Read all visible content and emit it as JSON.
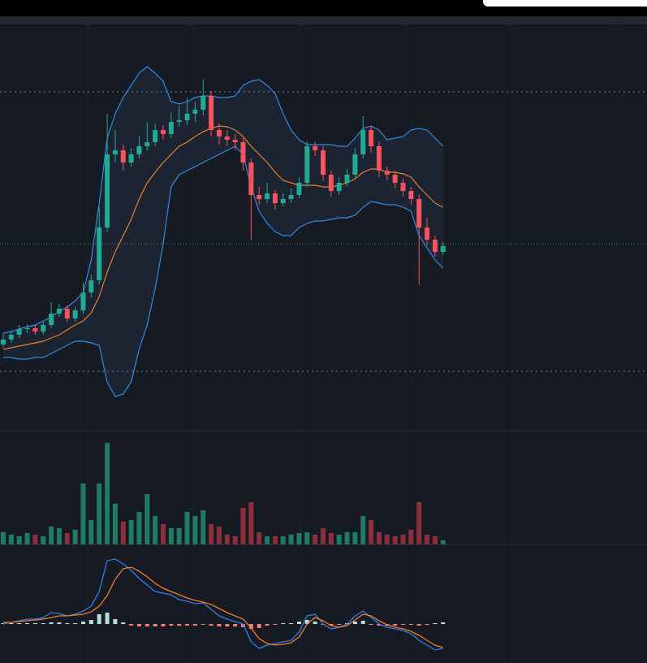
{
  "chart_data": {
    "type": "candlestick",
    "candles": [
      [
        106,
        120,
        102,
        112
      ],
      [
        112,
        122,
        108,
        118
      ],
      [
        118,
        130,
        114,
        125
      ],
      [
        125,
        131,
        120,
        126
      ],
      [
        126,
        130,
        118,
        122
      ],
      [
        122,
        134,
        118,
        130
      ],
      [
        130,
        158,
        126,
        144
      ],
      [
        144,
        156,
        140,
        150
      ],
      [
        150,
        154,
        134,
        138
      ],
      [
        138,
        152,
        134,
        148
      ],
      [
        148,
        182,
        144,
        170
      ],
      [
        170,
        192,
        164,
        185
      ],
      [
        185,
        275,
        180,
        250
      ],
      [
        250,
        390,
        245,
        340
      ],
      [
        340,
        370,
        330,
        345
      ],
      [
        345,
        352,
        320,
        330
      ],
      [
        330,
        348,
        325,
        340
      ],
      [
        340,
        362,
        335,
        350
      ],
      [
        350,
        380,
        345,
        355
      ],
      [
        355,
        378,
        350,
        370
      ],
      [
        370,
        376,
        358,
        365
      ],
      [
        365,
        392,
        360,
        380
      ],
      [
        380,
        400,
        374,
        382
      ],
      [
        382,
        410,
        376,
        390
      ],
      [
        390,
        405,
        380,
        395
      ],
      [
        395,
        432,
        388,
        412
      ],
      [
        412,
        418,
        362,
        370
      ],
      [
        370,
        378,
        352,
        362
      ],
      [
        362,
        370,
        350,
        358
      ],
      [
        358,
        365,
        345,
        355
      ],
      [
        355,
        360,
        320,
        330
      ],
      [
        330,
        335,
        235,
        290
      ],
      [
        290,
        300,
        278,
        285
      ],
      [
        285,
        305,
        280,
        292
      ],
      [
        292,
        296,
        272,
        280
      ],
      [
        280,
        292,
        276,
        285
      ],
      [
        285,
        298,
        280,
        290
      ],
      [
        290,
        312,
        286,
        305
      ],
      [
        305,
        356,
        300,
        350
      ],
      [
        350,
        356,
        338,
        345
      ],
      [
        345,
        350,
        308,
        315
      ],
      [
        315,
        320,
        288,
        295
      ],
      [
        295,
        312,
        290,
        305
      ],
      [
        305,
        322,
        300,
        315
      ],
      [
        315,
        348,
        310,
        340
      ],
      [
        340,
        387,
        335,
        370
      ],
      [
        370,
        375,
        342,
        350
      ],
      [
        350,
        356,
        312,
        320
      ],
      [
        320,
        325,
        308,
        315
      ],
      [
        315,
        320,
        298,
        305
      ],
      [
        305,
        310,
        288,
        295
      ],
      [
        295,
        300,
        278,
        285
      ],
      [
        285,
        290,
        180,
        250
      ],
      [
        250,
        262,
        228,
        235
      ],
      [
        235,
        240,
        214,
        220
      ],
      [
        220,
        232,
        216,
        227
      ]
    ],
    "ylim": [
      0,
      500
    ],
    "up_color": "#22ab94",
    "down_color": "#f7525f",
    "bands": {
      "upper": [
        120,
        122,
        125,
        128,
        130,
        135,
        140,
        147,
        152,
        160,
        170,
        210,
        280,
        360,
        390,
        410,
        425,
        440,
        448,
        440,
        430,
        405,
        402,
        405,
        410,
        412,
        412,
        410,
        410,
        412,
        425,
        430,
        432,
        425,
        415,
        390,
        370,
        358,
        352,
        352,
        352,
        352,
        350,
        350,
        360,
        372,
        375,
        370,
        358,
        360,
        362,
        370,
        372,
        370,
        360,
        350
      ],
      "middle": [
        100,
        102,
        104,
        106,
        108,
        110,
        114,
        118,
        124,
        130,
        135,
        145,
        165,
        195,
        220,
        240,
        260,
        285,
        305,
        318,
        330,
        340,
        350,
        355,
        362,
        368,
        372,
        375,
        374,
        370,
        362,
        350,
        340,
        330,
        318,
        308,
        305,
        302,
        302,
        302,
        300,
        300,
        302,
        305,
        310,
        318,
        322,
        322,
        318,
        318,
        316,
        312,
        300,
        290,
        280,
        275
      ],
      "lower": [
        90,
        90,
        88,
        88,
        90,
        90,
        95,
        100,
        105,
        110,
        110,
        108,
        105,
        60,
        42,
        45,
        60,
        100,
        130,
        175,
        230,
        300,
        315,
        320,
        325,
        330,
        335,
        340,
        345,
        350,
        340,
        300,
        270,
        255,
        245,
        240,
        240,
        250,
        255,
        258,
        258,
        260,
        262,
        262,
        265,
        275,
        282,
        280,
        278,
        278,
        275,
        270,
        240,
        225,
        210,
        200
      ],
      "band_color": "#2f8ae0",
      "middle_color": "#e8802a",
      "fill": "#1f2c3a"
    },
    "levels": [
      417,
      73
    ],
    "price_line": 230,
    "volume": {
      "values": [
        15,
        12,
        10,
        14,
        12,
        10,
        22,
        20,
        14,
        18,
        75,
        30,
        75,
        125,
        50,
        28,
        30,
        40,
        62,
        35,
        25,
        20,
        20,
        40,
        35,
        42,
        25,
        22,
        12,
        10,
        45,
        52,
        15,
        10,
        10,
        10,
        12,
        14,
        15,
        12,
        20,
        14,
        12,
        15,
        15,
        35,
        30,
        15,
        12,
        10,
        12,
        18,
        52,
        12,
        10,
        5
      ],
      "ylim": [
        0,
        140
      ],
      "up_color": "#1f7a68",
      "down_color": "#8c2f3c"
    },
    "macd": {
      "macd": [
        0,
        2,
        4,
        6,
        6,
        8,
        14,
        13,
        10,
        12,
        16,
        22,
        40,
        78,
        80,
        74,
        66,
        56,
        48,
        40,
        38,
        36,
        30,
        28,
        25,
        26,
        18,
        10,
        6,
        3,
        0,
        -22,
        -30,
        -26,
        -24,
        -22,
        -20,
        -10,
        10,
        12,
        0,
        -6,
        -4,
        0,
        10,
        16,
        8,
        0,
        -4,
        -6,
        -8,
        -12,
        -20,
        -26,
        -32,
        -30
      ],
      "signal": [
        2,
        2,
        3,
        4,
        5,
        6,
        8,
        10,
        10,
        11,
        12,
        15,
        22,
        35,
        55,
        68,
        70,
        65,
        58,
        50,
        44,
        40,
        36,
        32,
        29,
        27,
        24,
        19,
        14,
        10,
        6,
        -5,
        -18,
        -24,
        -26,
        -25,
        -23,
        -16,
        0,
        8,
        4,
        -2,
        -4,
        -2,
        5,
        12,
        10,
        4,
        -1,
        -4,
        -6,
        -9,
        -14,
        -20,
        -26,
        -29
      ],
      "histogram": [
        1,
        1,
        1,
        1,
        1,
        1,
        2,
        2,
        1,
        1,
        3,
        5,
        12,
        14,
        6,
        2,
        -2,
        -3,
        -3,
        -3,
        -3,
        -2,
        -2,
        -2,
        -2,
        -1,
        -2,
        -3,
        -3,
        -3,
        -4,
        -6,
        -5,
        -2,
        -1,
        1,
        1,
        3,
        5,
        3,
        -1,
        -2,
        -1,
        1,
        3,
        4,
        -1,
        -2,
        -2,
        -2,
        -1,
        -1,
        -2,
        -1,
        1,
        2
      ],
      "ylim": [
        -48,
        98
      ],
      "macd_color": "#2f7fe8",
      "signal_color": "#f57c20",
      "hist_up_color": "#b2dfdb",
      "hist_down_color": "#f77c80"
    }
  }
}
